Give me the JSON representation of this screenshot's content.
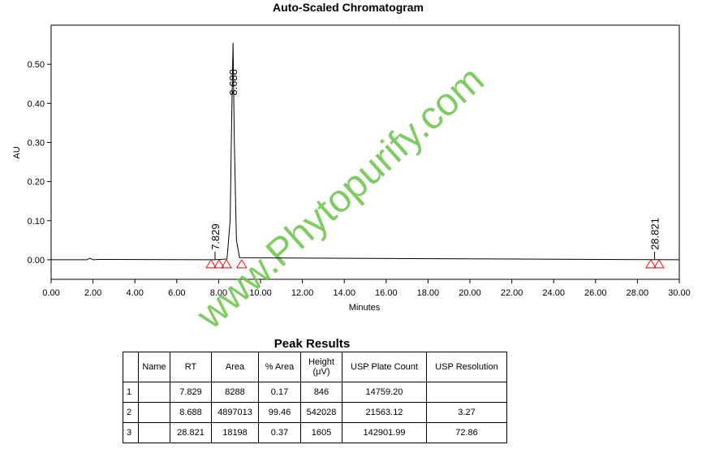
{
  "chart_data": {
    "type": "line",
    "title": "Auto-Scaled Chromatogram",
    "x_label": "Minutes",
    "y_label": "AU",
    "x": [
      0,
      1.7,
      1.85,
      2.0,
      2.3,
      7.8,
      8.4,
      8.55,
      8.62,
      8.688,
      8.75,
      8.85,
      9.0,
      30
    ],
    "values": [
      0,
      0,
      0.004,
      0,
      0.001,
      0,
      0.002,
      0.1,
      0.35,
      0.555,
      0.3,
      0.05,
      0.005,
      0
    ],
    "color": "#000000",
    "xlim": [
      0,
      30
    ],
    "xticks": [
      {
        "value": 0,
        "label": "0.00"
      },
      {
        "value": 2,
        "label": "2.00"
      },
      {
        "value": 4,
        "label": "4.00"
      },
      {
        "value": 6,
        "label": "6.00"
      },
      {
        "value": 8,
        "label": "8.00"
      },
      {
        "value": 10,
        "label": "10.00"
      },
      {
        "value": 12,
        "label": "12.00"
      },
      {
        "value": 14,
        "label": "14.00"
      },
      {
        "value": 16,
        "label": "16.00"
      },
      {
        "value": 18,
        "label": "18.00"
      },
      {
        "value": 20,
        "label": "20.00"
      },
      {
        "value": 22,
        "label": "22.00"
      },
      {
        "value": 24,
        "label": "24.00"
      },
      {
        "value": 26,
        "label": "26.00"
      },
      {
        "value": 28,
        "label": "28.00"
      },
      {
        "value": 30,
        "label": "30.00"
      }
    ],
    "ylim": [
      -0.05,
      0.6
    ],
    "yticks": [
      {
        "value": 0,
        "label": "0.00"
      },
      {
        "value": 0.1,
        "label": "0.10"
      },
      {
        "value": 0.2,
        "label": "0.20"
      },
      {
        "value": 0.3,
        "label": "0.30"
      },
      {
        "value": 0.4,
        "label": "0.40"
      },
      {
        "value": 0.5,
        "label": "0.50"
      }
    ],
    "peak_labels": [
      7.829,
      8.688,
      28.821
    ],
    "markers": [
      7.64,
      8.02,
      8.37,
      9.1,
      28.64,
      29.03
    ],
    "marker_color": "#ff0000",
    "watermark": "www.Phytopurify.com"
  },
  "table": {
    "title": "Peak Results",
    "columns": [
      null,
      "Name",
      "RT",
      "Area",
      "% Area",
      "Height (μV)",
      "USP Plate Count",
      "USP Resolution"
    ],
    "rows": [
      [
        "1",
        null,
        "7.829",
        "8288",
        "0.17",
        "846",
        "14759.20",
        null
      ],
      [
        "2",
        null,
        "8.688",
        "4897013",
        "99.46",
        "542028",
        "21563.12",
        "3.27"
      ],
      [
        "3",
        null,
        "28.821",
        "18198",
        "0.37",
        "1605",
        "142901.99",
        "72.86"
      ]
    ]
  }
}
